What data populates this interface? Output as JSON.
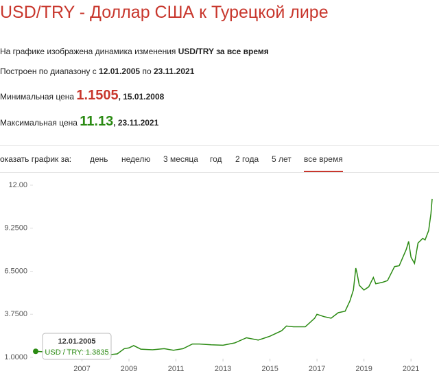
{
  "header": {
    "title": "USD/TRY - Доллар США к Турецкой лире"
  },
  "info": {
    "line1": {
      "text": "На графике изображена динамика изменения",
      "bold": "USD/TRY за все время"
    },
    "line2": {
      "text": "Построен по диапазону с",
      "from": "12.01.2005",
      "mid": "по",
      "to": "23.11.2021"
    },
    "min": {
      "label": "Минимальная цена",
      "value": "1.1505",
      "date": ", 15.01.2008"
    },
    "max": {
      "label": "Максимальная цена",
      "value": "11.13",
      "date": ", 23.11.2021"
    }
  },
  "tabs": {
    "label": "оказать график за:",
    "items": [
      "день",
      "неделю",
      "3 месяца",
      "год",
      "2 года",
      "5 лет",
      "все время"
    ],
    "active": 6
  },
  "chart_data": {
    "type": "line",
    "x": [
      2005.03,
      2005.5,
      2006.0,
      2006.4,
      2006.6,
      2007.0,
      2007.5,
      2007.9,
      2008.04,
      2008.5,
      2008.8,
      2009.0,
      2009.2,
      2009.5,
      2010.0,
      2010.5,
      2010.9,
      2011.3,
      2011.7,
      2012.0,
      2012.5,
      2013.0,
      2013.5,
      2014.0,
      2014.5,
      2015.0,
      2015.5,
      2015.7,
      2016.0,
      2016.5,
      2016.9,
      2017.0,
      2017.3,
      2017.6,
      2017.9,
      2018.2,
      2018.4,
      2018.55,
      2018.65,
      2018.7,
      2018.8,
      2019.0,
      2019.2,
      2019.4,
      2019.5,
      2019.8,
      2020.0,
      2020.3,
      2020.5,
      2020.8,
      2020.9,
      2021.0,
      2021.15,
      2021.3,
      2021.5,
      2021.6,
      2021.75,
      2021.85,
      2021.9
    ],
    "series": [
      {
        "color": "#2a8a12",
        "values": [
          1.3835,
          1.34,
          1.35,
          1.55,
          1.5,
          1.42,
          1.3,
          1.17,
          1.1505,
          1.22,
          1.55,
          1.6,
          1.75,
          1.52,
          1.48,
          1.55,
          1.45,
          1.55,
          1.85,
          1.85,
          1.8,
          1.77,
          1.92,
          2.25,
          2.1,
          2.35,
          2.7,
          3.0,
          2.95,
          2.95,
          3.5,
          3.75,
          3.6,
          3.5,
          3.85,
          3.95,
          4.6,
          5.3,
          6.7,
          6.4,
          5.6,
          5.3,
          5.5,
          6.1,
          5.7,
          5.8,
          5.9,
          6.8,
          6.85,
          7.9,
          8.4,
          7.4,
          7.0,
          8.3,
          8.6,
          8.5,
          9.1,
          10.2,
          11.13
        ]
      }
    ],
    "xlim": [
      2005,
      2021.9
    ],
    "ylim": [
      1,
      12
    ],
    "xticks": [
      2007,
      2009,
      2011,
      2013,
      2015,
      2017,
      2019,
      2021
    ],
    "yticks": [
      {
        "value": 1,
        "label": "1.0000"
      },
      {
        "value": 3.75,
        "label": "3.7500"
      },
      {
        "value": 6.5,
        "label": "6.5000"
      },
      {
        "value": 9.25,
        "label": "9.2500"
      },
      {
        "value": 12,
        "label": "12.00"
      }
    ],
    "tooltip": {
      "date": "12.01.2005",
      "text": "USD / TRY: 1.3835"
    }
  }
}
